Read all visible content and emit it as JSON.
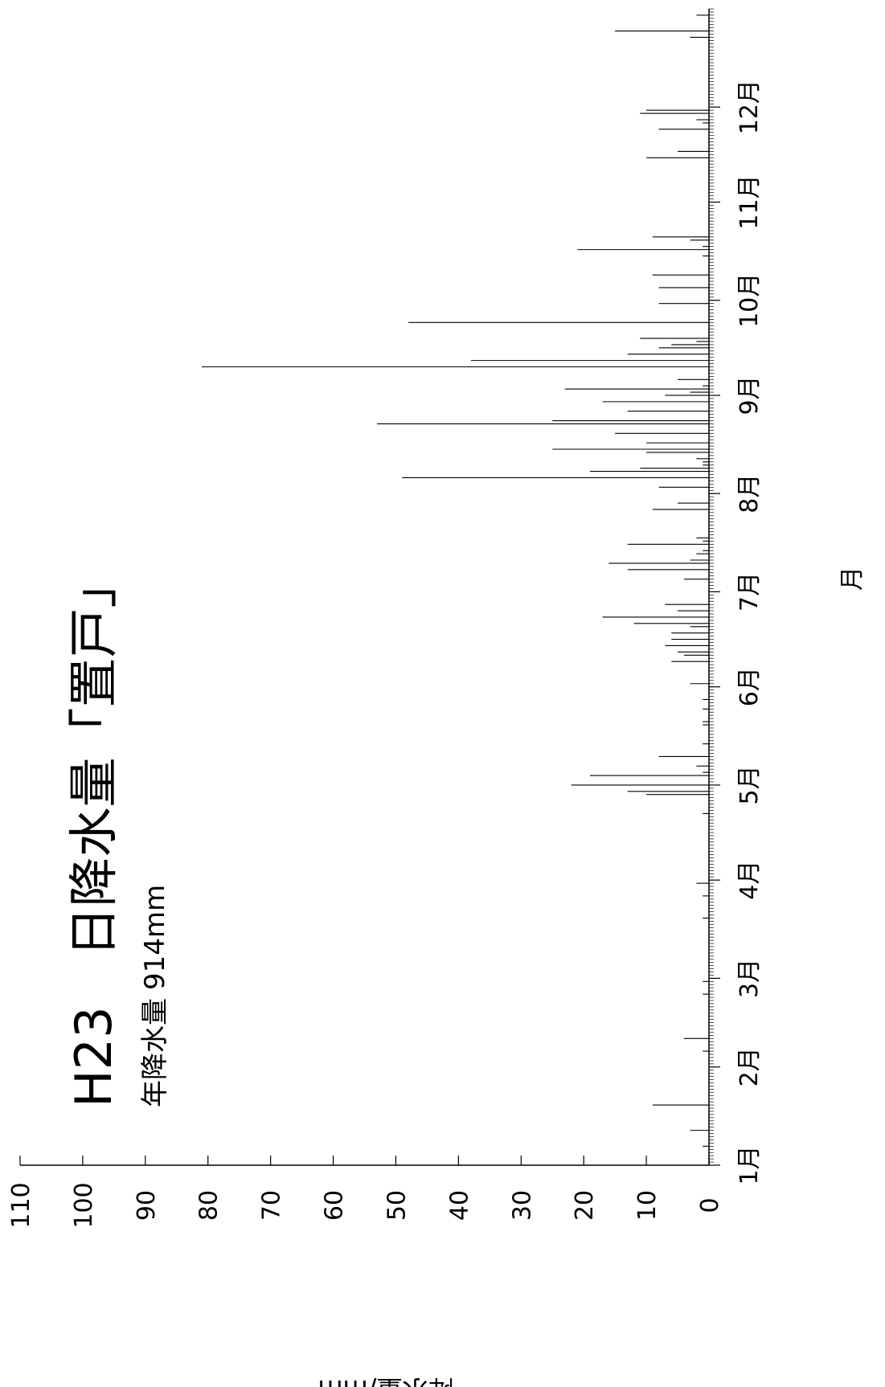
{
  "chart_data": {
    "type": "bar",
    "orientation": "rotated-90",
    "title": "H23　日降水量「置戸」",
    "subtitle_label": "年降水量",
    "subtitle_value": "914mm",
    "xlabel": "月",
    "ylabel": "降水量/mm",
    "xlim": [
      1,
      366
    ],
    "ylim": [
      0,
      110
    ],
    "grid": false,
    "month_ticks": [
      {
        "day": 1,
        "label": "1月"
      },
      {
        "day": 32,
        "label": "2月"
      },
      {
        "day": 60,
        "label": "3月"
      },
      {
        "day": 91,
        "label": "4月"
      },
      {
        "day": 121,
        "label": "5月"
      },
      {
        "day": 152,
        "label": "6月"
      },
      {
        "day": 182,
        "label": "7月"
      },
      {
        "day": 213,
        "label": "8月"
      },
      {
        "day": 244,
        "label": "9月"
      },
      {
        "day": 274,
        "label": "10月"
      },
      {
        "day": 305,
        "label": "11月"
      },
      {
        "day": 335,
        "label": "12月"
      }
    ],
    "y_ticks": [
      0,
      10,
      20,
      30,
      40,
      50,
      60,
      70,
      80,
      90,
      100,
      110
    ],
    "series": [
      {
        "days": [
          7,
          12,
          20,
          37,
          41,
          55,
          59,
          79,
          86,
          90,
          112,
          118,
          119,
          121,
          124,
          125,
          127,
          130,
          134,
          140,
          141,
          145,
          148,
          153,
          160,
          162,
          163,
          165,
          167,
          169,
          171,
          172,
          174,
          176,
          178,
          186,
          189,
          191,
          192,
          194,
          195,
          197,
          198,
          199,
          208,
          210,
          215,
          218,
          220,
          221,
          222,
          223,
          224,
          226,
          227,
          229,
          232,
          235,
          236,
          239,
          242,
          244,
          245,
          246,
          247,
          249,
          253,
          255,
          257,
          259,
          260,
          261,
          262,
          267,
          273,
          278,
          282,
          288,
          290,
          291,
          293,
          294,
          319,
          321,
          328,
          330,
          331,
          333,
          334,
          357,
          359,
          364
        ],
        "values": [
          1,
          3,
          9,
          1,
          4,
          1,
          1,
          1,
          1,
          2,
          1,
          10,
          13,
          22,
          19,
          1,
          2,
          8,
          1,
          1,
          1,
          1,
          1,
          3,
          6,
          4,
          5,
          7,
          6,
          6,
          3,
          12,
          17,
          5,
          7,
          4,
          13,
          16,
          3,
          2,
          1,
          13,
          1,
          2,
          9,
          5,
          8,
          49,
          19,
          11,
          1,
          1,
          2,
          10,
          25,
          10,
          15,
          53,
          25,
          13,
          17,
          7,
          3,
          23,
          1,
          5,
          81,
          38,
          13,
          8,
          6,
          2,
          11,
          48,
          8,
          8,
          9,
          1,
          21,
          1,
          3,
          9,
          10,
          5,
          8,
          1,
          2,
          11,
          10,
          3,
          15,
          2
        ]
      }
    ]
  }
}
